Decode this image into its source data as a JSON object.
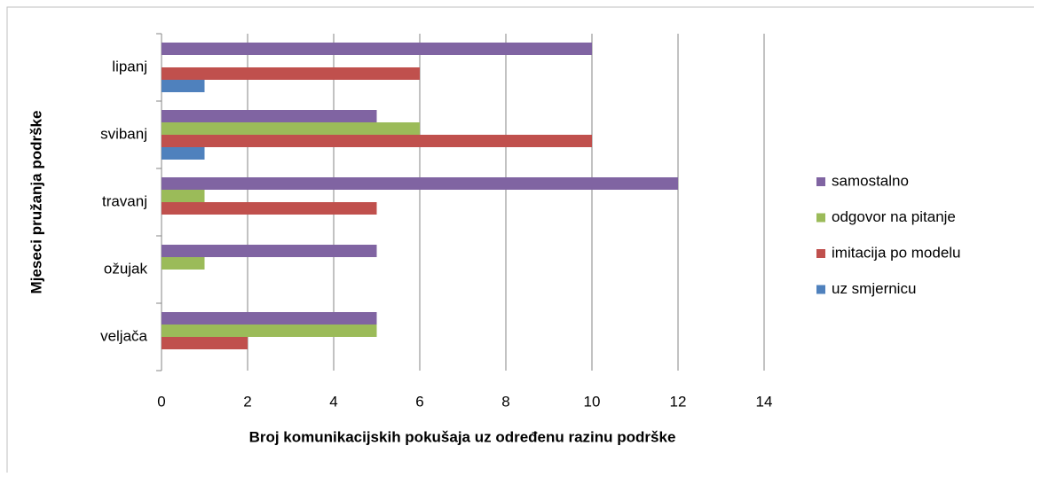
{
  "chart_data": {
    "type": "barh",
    "categories": [
      "veljača",
      "ožujak",
      "travanj",
      "svibanj",
      "lipanj"
    ],
    "series": [
      {
        "name": "uz smjernicu",
        "color": "#4f81bd",
        "values": [
          0,
          0,
          0,
          1,
          1
        ]
      },
      {
        "name": "imitacija po modelu",
        "color": "#c0504d",
        "values": [
          2,
          0,
          5,
          10,
          6
        ]
      },
      {
        "name": "odgovor na pitanje",
        "color": "#9bbb59",
        "values": [
          5,
          1,
          1,
          6,
          0
        ]
      },
      {
        "name": "samostalno",
        "color": "#8064a2",
        "values": [
          5,
          5,
          12,
          5,
          10
        ]
      }
    ],
    "xlim": [
      0,
      14
    ],
    "xticks": [
      0,
      2,
      4,
      6,
      8,
      10,
      12,
      14
    ],
    "xlabel": "Broj komunikacijskih pokušaja uz određenu razinu podrške",
    "ylabel": "Mjeseci pružanja podrške",
    "grid": true,
    "legend": "right"
  }
}
